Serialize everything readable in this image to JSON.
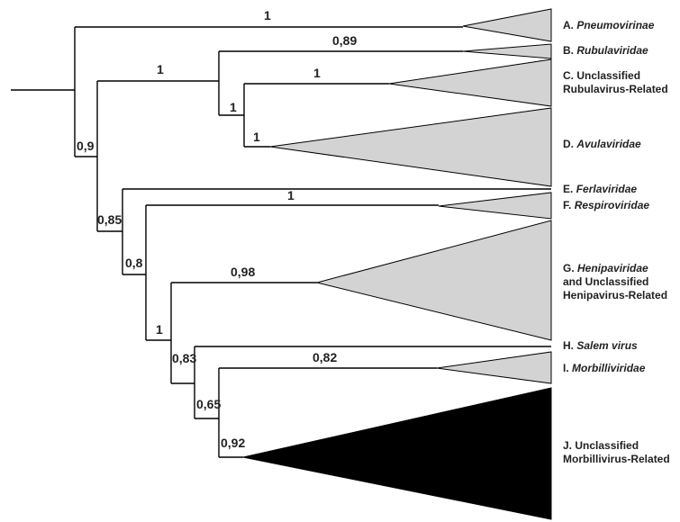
{
  "support": {
    "s_a": "1",
    "s_b": "0,89",
    "s_bcd": "1",
    "s_c": "1",
    "s_cd": "1",
    "s_d": "1",
    "s_root_inner": "0,9",
    "s_e": "0,85",
    "s_f": "1",
    "s_fj": "0,8",
    "s_g": "0,98",
    "s_gj": "1",
    "s_hj": "0,83",
    "s_i": "0,82",
    "s_ij": "0,65",
    "s_j": "0,92"
  },
  "taxa": {
    "a_prefix": "A.",
    "a_name": "Pneumovirinae",
    "b_prefix": "B.",
    "b_name": "Rubulaviridae",
    "c_line1": "C. Unclassified",
    "c_line2": "Rubulavirus-Related",
    "d_prefix": "D.",
    "d_name": "Avulaviridae",
    "e_prefix": "E.",
    "e_name": "Ferlaviridae",
    "f_prefix": "F.",
    "f_name": "Respiroviridae",
    "g_prefix": "G.",
    "g_name": "Henipaviridae",
    "g_line2": "and Unclassified",
    "g_line3": "Henipavirus-Related",
    "h_prefix": "H.",
    "h_name": "Salem virus",
    "i_prefix": "I.",
    "i_name": "Morbilliviridae",
    "j_line1": "J. Unclassified",
    "j_line2": "Morbillivirus-Related"
  }
}
